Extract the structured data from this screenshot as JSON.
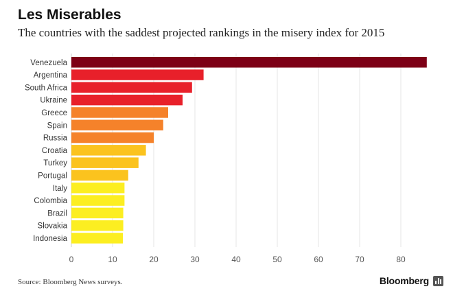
{
  "header": {
    "title": "Les Miserables",
    "subtitle": "The countries with the saddest projected rankings in the misery index for 2015"
  },
  "footer": {
    "source": "Source: Bloomberg News surveys.",
    "brand": "Bloomberg",
    "brand_icon": "bar-chart-icon"
  },
  "chart_data": {
    "type": "bar",
    "orientation": "horizontal",
    "title": "Les Miserables",
    "subtitle": "The countries with the saddest projected rankings in the misery index for 2015",
    "categories": [
      "Venezuela",
      "Argentina",
      "South Africa",
      "Ukraine",
      "Greece",
      "Spain",
      "Russia",
      "Croatia",
      "Turkey",
      "Portugal",
      "Italy",
      "Colombia",
      "Brazil",
      "Slovakia",
      "Indonesia"
    ],
    "values": [
      86.3,
      32.1,
      29.3,
      27.0,
      23.5,
      22.3,
      20.0,
      18.1,
      16.3,
      13.8,
      12.9,
      12.9,
      12.6,
      12.6,
      12.5
    ],
    "colors": [
      "#7d0016",
      "#e8202a",
      "#e8202a",
      "#e8202a",
      "#f5822a",
      "#f5822a",
      "#f5822a",
      "#fbc31e",
      "#fbc31e",
      "#fbc31e",
      "#fcee21",
      "#fcee21",
      "#fcee21",
      "#fcee21",
      "#fcee21"
    ],
    "xlim": [
      0,
      87
    ],
    "xticks": [
      0,
      10,
      20,
      30,
      40,
      50,
      60,
      70,
      80
    ],
    "grid": true,
    "xlabel": "",
    "ylabel": ""
  }
}
